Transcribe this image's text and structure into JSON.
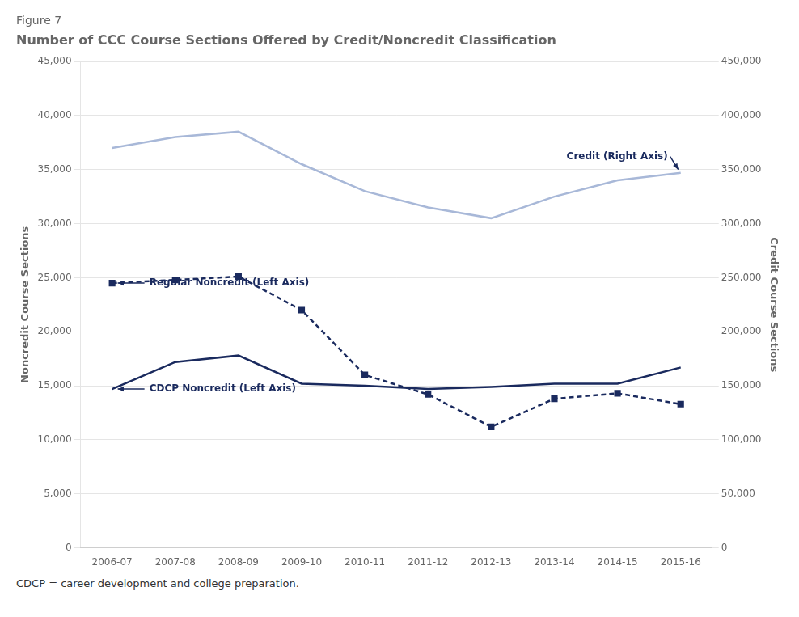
{
  "chart_data": {
    "type": "line",
    "subtitle": "Figure 7",
    "title": "Number of CCC Course Sections Offered by Credit/Noncredit Classification",
    "categories": [
      "2006-07",
      "2007-08",
      "2008-09",
      "2009-10",
      "2010-11",
      "2011-12",
      "2012-13",
      "2013-14",
      "2014-15",
      "2015-16"
    ],
    "series": [
      {
        "name": "Credit (Right Axis)",
        "color": "#a8b8d8",
        "axis": "y2",
        "line_style": "solid",
        "marker": "none",
        "values": [
          370000,
          380000,
          385000,
          355000,
          330000,
          315000,
          305000,
          325000,
          340000,
          347000
        ]
      },
      {
        "name": "Regular Noncredit (Left Axis)",
        "color": "#1a2a5e",
        "line_style": "dashed",
        "marker": "square",
        "values": [
          24500,
          24800,
          25100,
          22000,
          16000,
          14200,
          11200,
          13800,
          14300,
          13300
        ]
      },
      {
        "name": "CDCP Noncredit (Left Axis)",
        "color": "#1a2a5e",
        "line_style": "solid",
        "marker": "none",
        "values": [
          14700,
          17200,
          17800,
          15200,
          15000,
          14700,
          14900,
          15200,
          15200,
          16700
        ]
      }
    ],
    "ylabel": "Noncredit Course Sections",
    "y2label": "Credit Course Sections",
    "ylim": [
      0,
      45000
    ],
    "yticks": [
      0,
      {
        "value": 5000,
        "label": "5,000"
      },
      {
        "value": 10000,
        "label": "10,000"
      },
      {
        "value": 15000,
        "label": "15,000"
      },
      {
        "value": 20000,
        "label": "20,000"
      },
      {
        "value": 25000,
        "label": "25,000"
      },
      {
        "value": 30000,
        "label": "30,000"
      },
      {
        "value": 35000,
        "label": "35,000"
      },
      {
        "value": 40000,
        "label": "40,000"
      },
      {
        "value": 45000,
        "label": "45,000"
      }
    ],
    "y2lim": [
      0,
      450000
    ],
    "y2ticks": [
      0,
      {
        "value": 50000,
        "label": "50,000"
      },
      {
        "value": 100000,
        "label": "100,000"
      },
      {
        "value": 150000,
        "label": "150,000"
      },
      {
        "value": 200000,
        "label": "200,000"
      },
      {
        "value": 250000,
        "label": "250,000"
      },
      {
        "value": 300000,
        "label": "300,000"
      },
      {
        "value": 350000,
        "label": "350,000"
      },
      {
        "value": 400000,
        "label": "400,000"
      },
      {
        "value": 450000,
        "label": "450,000"
      }
    ],
    "grid": true,
    "footnote": "CDCP = career development and college preparation."
  }
}
